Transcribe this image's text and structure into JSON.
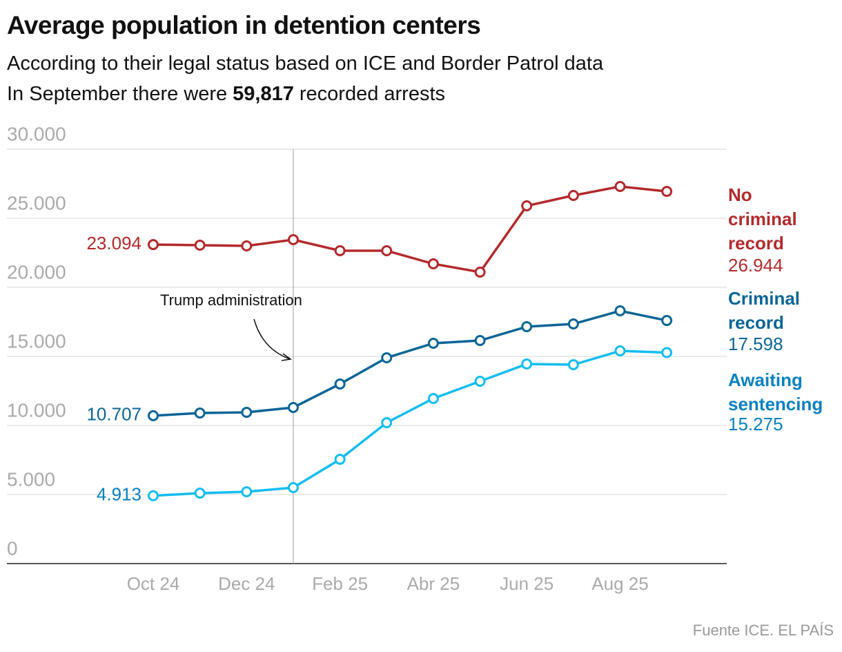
{
  "chart_data": {
    "type": "line",
    "title": "Average population in detention centers",
    "subtitle": "According to their legal status based on ICE and Border Patrol data",
    "note": {
      "before": "In September there were",
      "number": "59,817",
      "after": "recorded arrests"
    },
    "source": "Fuente ICE. EL PAÍS",
    "annotation": "Trump administration",
    "categories": [
      "Oct 24",
      null,
      "Dec 24",
      null,
      "Feb 25",
      null,
      "Abr 25",
      null,
      "Jun 25",
      null,
      "Aug 25",
      null
    ],
    "ylim": [
      0,
      30000
    ],
    "yticks": [
      0,
      {
        "value": 5000,
        "label": "5.000"
      },
      {
        "value": 10000,
        "label": "10.000"
      },
      {
        "value": 15000,
        "label": "15.000"
      },
      {
        "value": 20000,
        "label": "20.000"
      },
      {
        "value": 25000,
        "label": "25.000"
      },
      {
        "value": 30000,
        "label": "30.000"
      }
    ],
    "grid": true,
    "series": [
      {
        "name": "No criminal record",
        "color": "#b3292c",
        "label_color": "#b3292c",
        "values": [
          23094,
          23050,
          23000,
          23450,
          22650,
          22650,
          21700,
          21100,
          25900,
          26650,
          27300,
          26944
        ],
        "value_labels": [
          "23.094",
          null,
          null,
          null,
          null,
          null,
          null,
          null,
          null,
          null,
          null,
          "26.944"
        ]
      },
      {
        "name": "Criminal record",
        "color": "#0b6596",
        "label_color": "#0b6596",
        "values": [
          10707,
          10900,
          10950,
          11300,
          13000,
          14900,
          15950,
          16150,
          17150,
          17350,
          18300,
          17598
        ],
        "value_labels": [
          "10.707",
          null,
          null,
          null,
          null,
          null,
          null,
          null,
          null,
          null,
          null,
          "17.598"
        ]
      },
      {
        "name": "Awaiting sentencing",
        "color": "#14bdf0",
        "label_color": "#0a80c0",
        "values": [
          4913,
          5100,
          5200,
          5500,
          7550,
          10200,
          11950,
          13200,
          14450,
          14400,
          15400,
          15275
        ],
        "value_labels": [
          "4.913",
          null,
          null,
          null,
          null,
          null,
          null,
          null,
          null,
          null,
          null,
          "15.275"
        ]
      }
    ]
  }
}
